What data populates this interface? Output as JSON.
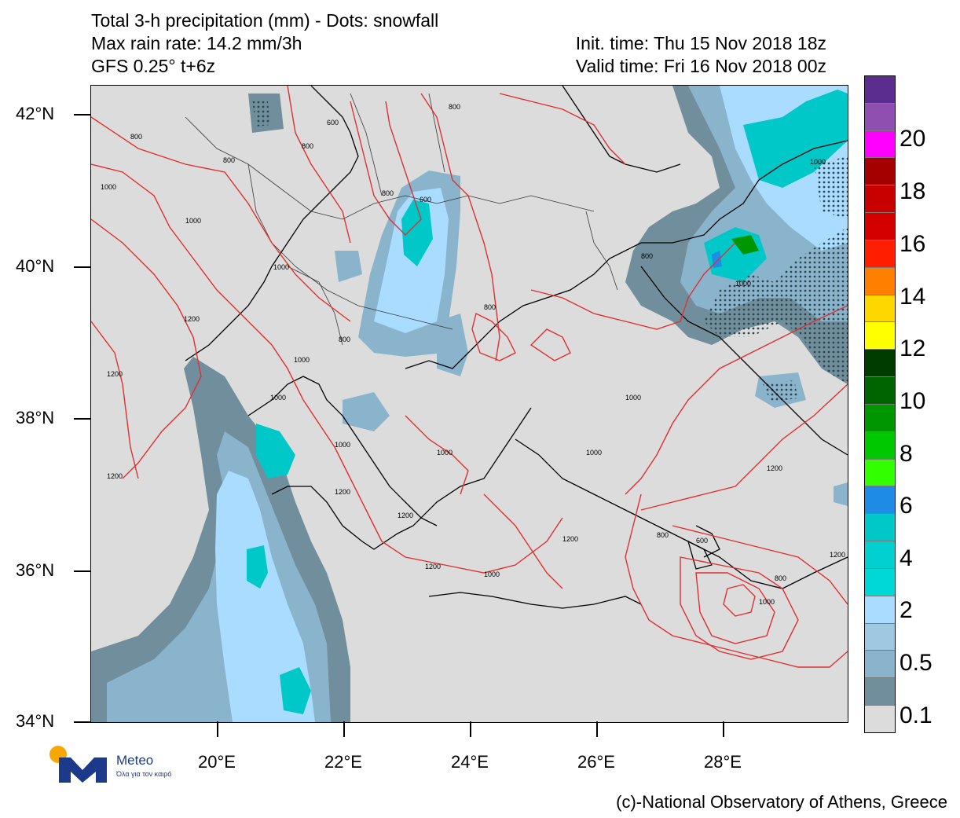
{
  "header": {
    "line1": "Total 3-h precipitation (mm) - Dots: snowfall",
    "line2": "Max rain rate: 14.2 mm/3h",
    "line3": "GFS 0.25° t+6z",
    "init_time": "Init. time: Thu 15 Nov 2018 18z",
    "valid_time": "Valid time: Fri 16 Nov 2018 00z"
  },
  "axes": {
    "lat_labels": [
      "42°N",
      "40°N",
      "38°N",
      "36°N",
      "34°N"
    ],
    "lon_labels": [
      "20°E",
      "22°E",
      "24°E",
      "26°E",
      "28°E"
    ]
  },
  "colorbar": {
    "labels": [
      "20",
      "18",
      "16",
      "14",
      "12",
      "10",
      "8",
      "6",
      "4",
      "2",
      "0.5",
      "0.1"
    ],
    "colors": [
      "#5b2d8e",
      "#8e4fb0",
      "#ff00ff",
      "#a50000",
      "#c80000",
      "#d40000",
      "#ff1e00",
      "#ff7f00",
      "#ffd700",
      "#ffff00",
      "#003c00",
      "#006400",
      "#009600",
      "#00c800",
      "#32ff00",
      "#1e8ce6",
      "#00c8c8",
      "#00d0d0",
      "#00d8d8",
      "#aadcff",
      "#a0c8e0",
      "#8ab4cc",
      "#708e9c",
      "#dcdcdc"
    ]
  },
  "contour_labels": [
    "800",
    "1000",
    "1200",
    "800",
    "1000",
    "1000",
    "1200",
    "1200",
    "800",
    "1000",
    "800",
    "1000",
    "600",
    "800",
    "1000",
    "1200",
    "600",
    "800",
    "800",
    "1000",
    "1200",
    "1000",
    "1200",
    "1000",
    "1200",
    "1000",
    "800",
    "600",
    "1000",
    "1200",
    "1200",
    "1000",
    "800",
    "1000",
    "800"
  ],
  "logo": {
    "name": "Meteo",
    "tagline": "Όλα για τον καιρό"
  },
  "credit": "(c)-National Observatory of Athens, Greece"
}
